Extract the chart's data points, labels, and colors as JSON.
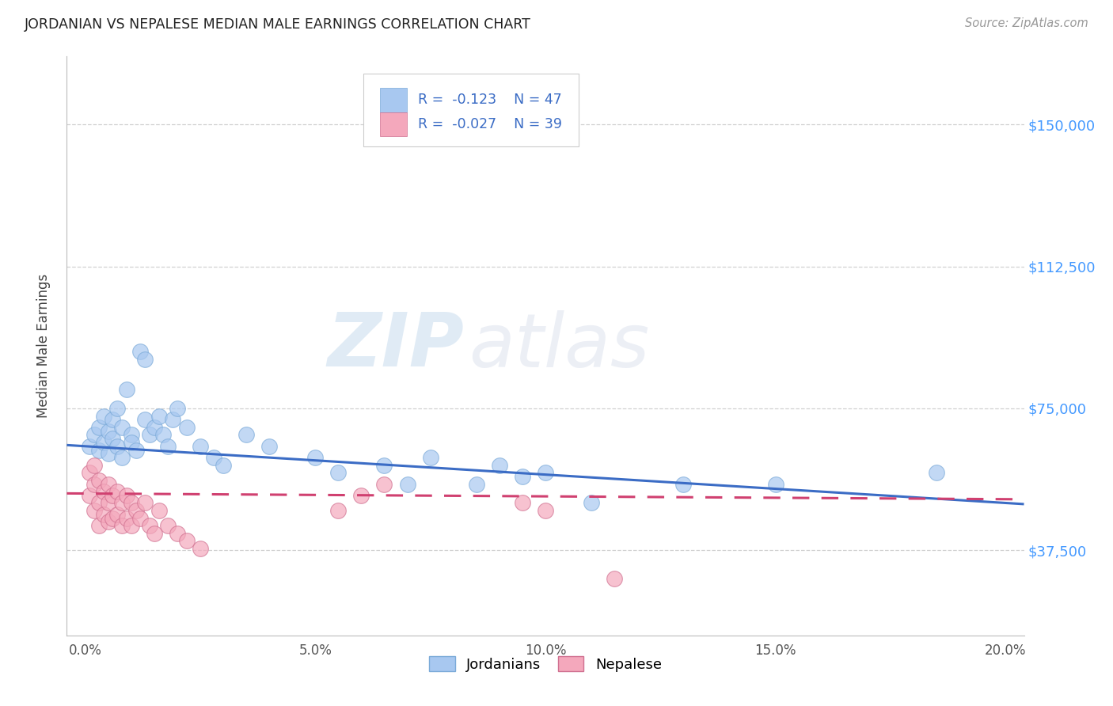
{
  "title": "JORDANIAN VS NEPALESE MEDIAN MALE EARNINGS CORRELATION CHART",
  "source": "Source: ZipAtlas.com",
  "ylabel": "Median Male Earnings",
  "xlabel_ticks": [
    "0.0%",
    "5.0%",
    "10.0%",
    "15.0%",
    "20.0%"
  ],
  "xlabel_vals": [
    0.0,
    0.05,
    0.1,
    0.15,
    0.2
  ],
  "ytick_labels": [
    "$37,500",
    "$75,000",
    "$112,500",
    "$150,000"
  ],
  "ytick_vals": [
    37500,
    75000,
    112500,
    150000
  ],
  "ylim": [
    15000,
    168000
  ],
  "xlim": [
    -0.004,
    0.204
  ],
  "watermark_zip": "ZIP",
  "watermark_atlas": "atlas",
  "jordanians_color": "#A8C8F0",
  "jordanians_edge": "#7BAAD8",
  "nepalese_color": "#F4A8BC",
  "nepalese_edge": "#D07090",
  "trend_jordan_color": "#3B6CC5",
  "trend_nepal_color": "#D04070",
  "R_jordan": -0.123,
  "N_jordan": 47,
  "R_nepal": -0.027,
  "N_nepal": 39,
  "legend_label_jordan": "Jordanians",
  "legend_label_nepal": "Nepalese",
  "jordanians_x": [
    0.001,
    0.002,
    0.003,
    0.003,
    0.004,
    0.004,
    0.005,
    0.005,
    0.006,
    0.006,
    0.007,
    0.007,
    0.008,
    0.008,
    0.009,
    0.01,
    0.01,
    0.011,
    0.012,
    0.013,
    0.013,
    0.014,
    0.015,
    0.016,
    0.017,
    0.018,
    0.019,
    0.02,
    0.022,
    0.025,
    0.028,
    0.03,
    0.035,
    0.04,
    0.05,
    0.055,
    0.065,
    0.07,
    0.075,
    0.085,
    0.09,
    0.095,
    0.1,
    0.11,
    0.13,
    0.15,
    0.185
  ],
  "jordanians_y": [
    65000,
    68000,
    70000,
    64000,
    73000,
    66000,
    69000,
    63000,
    72000,
    67000,
    65000,
    75000,
    70000,
    62000,
    80000,
    68000,
    66000,
    64000,
    90000,
    88000,
    72000,
    68000,
    70000,
    73000,
    68000,
    65000,
    72000,
    75000,
    70000,
    65000,
    62000,
    60000,
    68000,
    65000,
    62000,
    58000,
    60000,
    55000,
    62000,
    55000,
    60000,
    57000,
    58000,
    50000,
    55000,
    55000,
    58000
  ],
  "nepalese_x": [
    0.001,
    0.001,
    0.002,
    0.002,
    0.002,
    0.003,
    0.003,
    0.003,
    0.004,
    0.004,
    0.005,
    0.005,
    0.005,
    0.006,
    0.006,
    0.007,
    0.007,
    0.008,
    0.008,
    0.009,
    0.009,
    0.01,
    0.01,
    0.011,
    0.012,
    0.013,
    0.014,
    0.015,
    0.016,
    0.018,
    0.02,
    0.022,
    0.025,
    0.055,
    0.06,
    0.065,
    0.095,
    0.1,
    0.115
  ],
  "nepalese_y": [
    58000,
    52000,
    60000,
    55000,
    48000,
    56000,
    50000,
    44000,
    53000,
    47000,
    55000,
    50000,
    45000,
    52000,
    46000,
    53000,
    47000,
    50000,
    44000,
    52000,
    46000,
    50000,
    44000,
    48000,
    46000,
    50000,
    44000,
    42000,
    48000,
    44000,
    42000,
    40000,
    38000,
    48000,
    52000,
    55000,
    50000,
    48000,
    30000
  ]
}
